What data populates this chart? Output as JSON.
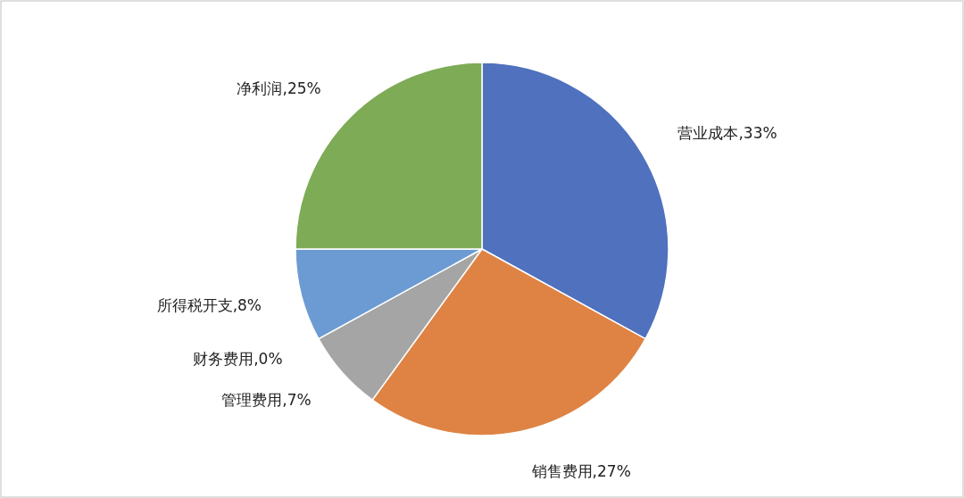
{
  "chart_data": {
    "type": "pie",
    "categories": [
      "营业成本",
      "销售费用",
      "管理费用",
      "财务费用",
      "所得税开支",
      "净利润"
    ],
    "values": [
      33,
      27,
      7,
      0,
      8,
      25
    ],
    "colors": [
      "#4f71be",
      "#de8344",
      "#a5a5a5",
      null,
      "#6b9bd2",
      "#7eab55"
    ],
    "value_labels": [
      ",33%",
      ",27%",
      ",7%",
      ",0%",
      ",8%",
      ",25%"
    ]
  }
}
